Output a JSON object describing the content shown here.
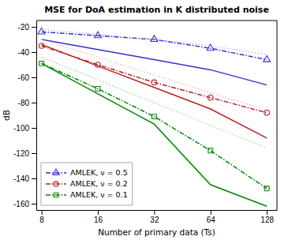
{
  "chart_data": {
    "type": "line",
    "title": "MSE for DoA estimation in K distributed noise",
    "x_label": "Number of primary data (Ts)",
    "y_label": "dB",
    "x": [
      8,
      16,
      32,
      64,
      128
    ],
    "log": "x",
    "xlim": [
      7.5,
      145
    ],
    "xticks": [
      8,
      16,
      32,
      64,
      128
    ],
    "ylim": [
      -165,
      -15
    ],
    "yticks": [
      -160,
      -140,
      -120,
      -100,
      -80,
      -60,
      -40,
      -20
    ],
    "grid": false,
    "legend": "lower left",
    "series": [
      {
        "name": "AMLEK, ν = 0.5",
        "color": "#3333cc",
        "line_style": "dashdot",
        "marker": "triangle",
        "values": [
          -24,
          -27,
          -30,
          -37,
          -46
        ]
      },
      {
        "color": "#3333cc",
        "line_style": "solid",
        "values": [
          -30,
          -38,
          -46,
          -54,
          -66
        ]
      },
      {
        "color": "#aaaaee",
        "line_style": "dotted",
        "values": [
          -22,
          -26,
          -30,
          -35,
          -42
        ]
      },
      {
        "name": "AMLEK, ν = 0.2",
        "color": "#bb2222",
        "line_style": "dashdot",
        "marker": "circle",
        "values": [
          -35,
          -50,
          -64,
          -76,
          -88
        ]
      },
      {
        "color": "#bb2222",
        "line_style": "solid",
        "values": [
          -34,
          -51,
          -68,
          -85,
          -108
        ]
      },
      {
        "color": "#ffaaaa",
        "line_style": "dotted",
        "values": [
          -30,
          -44,
          -58,
          -72,
          -86
        ]
      },
      {
        "name": "AMLEK, ν = 0.1",
        "color": "#008800",
        "line_style": "dashdot",
        "marker": "square",
        "values": [
          -49,
          -69,
          -91,
          -118,
          -148
        ]
      },
      {
        "color": "#008800",
        "line_style": "solid",
        "values": [
          -49,
          -73,
          -97,
          -145,
          -162
        ]
      },
      {
        "color": "#88dd88",
        "line_style": "dotted",
        "values": [
          -44,
          -62,
          -80,
          -98,
          -116
        ]
      }
    ]
  }
}
